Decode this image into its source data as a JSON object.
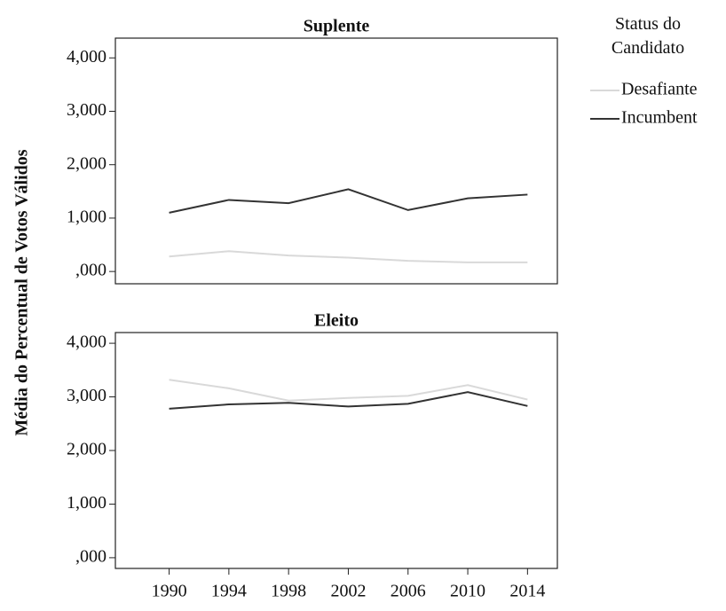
{
  "ylabel": "Média do Percentual de Votos Válidos",
  "legend_title": "Status do Candidato",
  "chart_data": [
    {
      "type": "line",
      "title": "Suplente",
      "x": [
        1990,
        1994,
        1998,
        2002,
        2006,
        2010,
        2014
      ],
      "xlim": [
        1986.4,
        2016
      ],
      "xticks": [
        1990,
        1994,
        1998,
        2002,
        2006,
        2010,
        2014
      ],
      "ylim": [
        -0.23,
        4.37
      ],
      "yticks": [
        {
          "value": 0,
          "label": ",000"
        },
        {
          "value": 1,
          "label": "1,000"
        },
        {
          "value": 2,
          "label": "2,000"
        },
        {
          "value": 3,
          "label": "3,000"
        },
        {
          "value": 4,
          "label": "4,000"
        }
      ],
      "series": [
        {
          "name": "Desafiante",
          "color": "#d9d9d9",
          "values": [
            0.28,
            0.38,
            0.3,
            0.26,
            0.2,
            0.17,
            0.17
          ]
        },
        {
          "name": "Incumbent",
          "color": "#333333",
          "values": [
            1.1,
            1.34,
            1.28,
            1.54,
            1.15,
            1.37,
            1.44
          ]
        }
      ]
    },
    {
      "type": "line",
      "title": "Eleito",
      "x": [
        1990,
        1994,
        1998,
        2002,
        2006,
        2010,
        2014
      ],
      "xlim": [
        1986.4,
        2016
      ],
      "xticks": [
        1990,
        1994,
        1998,
        2002,
        2006,
        2010,
        2014
      ],
      "ylim": [
        -0.2,
        4.2
      ],
      "yticks": [
        {
          "value": 0,
          "label": ",000"
        },
        {
          "value": 1,
          "label": "1,000"
        },
        {
          "value": 2,
          "label": "2,000"
        },
        {
          "value": 3,
          "label": "3,000"
        },
        {
          "value": 4,
          "label": "4,000"
        }
      ],
      "series": [
        {
          "name": "Desafiante",
          "color": "#d9d9d9",
          "values": [
            3.32,
            3.16,
            2.93,
            2.98,
            3.02,
            3.22,
            2.95
          ]
        },
        {
          "name": "Incumbent",
          "color": "#333333",
          "values": [
            2.78,
            2.86,
            2.89,
            2.82,
            2.87,
            3.09,
            2.83
          ]
        }
      ]
    }
  ]
}
